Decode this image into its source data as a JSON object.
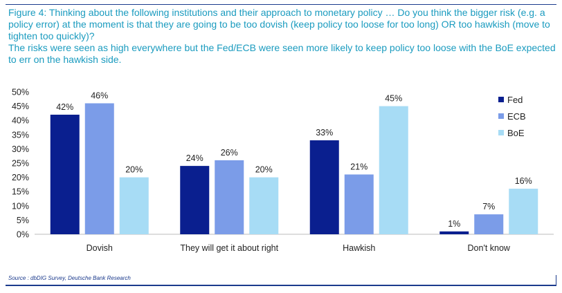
{
  "title": "Figure 4: Thinking about the following institutions and their approach to monetary policy … Do you think the bigger risk (e.g. a policy error) at the moment is that they are going to be too dovish (keep policy too loose for too long) OR too hawkish (move to tighten too quickly)?",
  "subtitle": "The risks were seen as high everywhere but the Fed/ECB were seen more likely to keep policy too loose with the BoE expected to err on the hawkish side.",
  "source": "Source : dbDIG Survey, Deutsche Bank Research",
  "colors": {
    "text_title": "#1a9bbf",
    "frame": "#1b3a8c"
  },
  "chart_data": {
    "type": "bar",
    "categories": [
      "Dovish",
      "They will get it about right",
      "Hawkish",
      "Don't know"
    ],
    "series": [
      {
        "name": "Fed",
        "color": "#0a1f8f",
        "values": [
          42,
          24,
          33,
          1
        ],
        "labels": [
          "42%",
          "24%",
          "33%",
          "1%"
        ]
      },
      {
        "name": "ECB",
        "color": "#7b9ce8",
        "values": [
          46,
          26,
          21,
          7
        ],
        "labels": [
          "46%",
          "26%",
          "21%",
          "7%"
        ]
      },
      {
        "name": "BoE",
        "color": "#a7dcf5",
        "values": [
          20,
          20,
          45,
          16
        ],
        "labels": [
          "20%",
          "20%",
          "45%",
          "16%"
        ]
      }
    ],
    "ylim": [
      0,
      50
    ],
    "yticks": [
      0,
      5,
      10,
      15,
      20,
      25,
      30,
      35,
      40,
      45,
      50
    ],
    "ytick_labels": [
      "0%",
      "5%",
      "10%",
      "15%",
      "20%",
      "25%",
      "30%",
      "35%",
      "40%",
      "45%",
      "50%"
    ],
    "legend_position": "top-right",
    "grid": false
  }
}
